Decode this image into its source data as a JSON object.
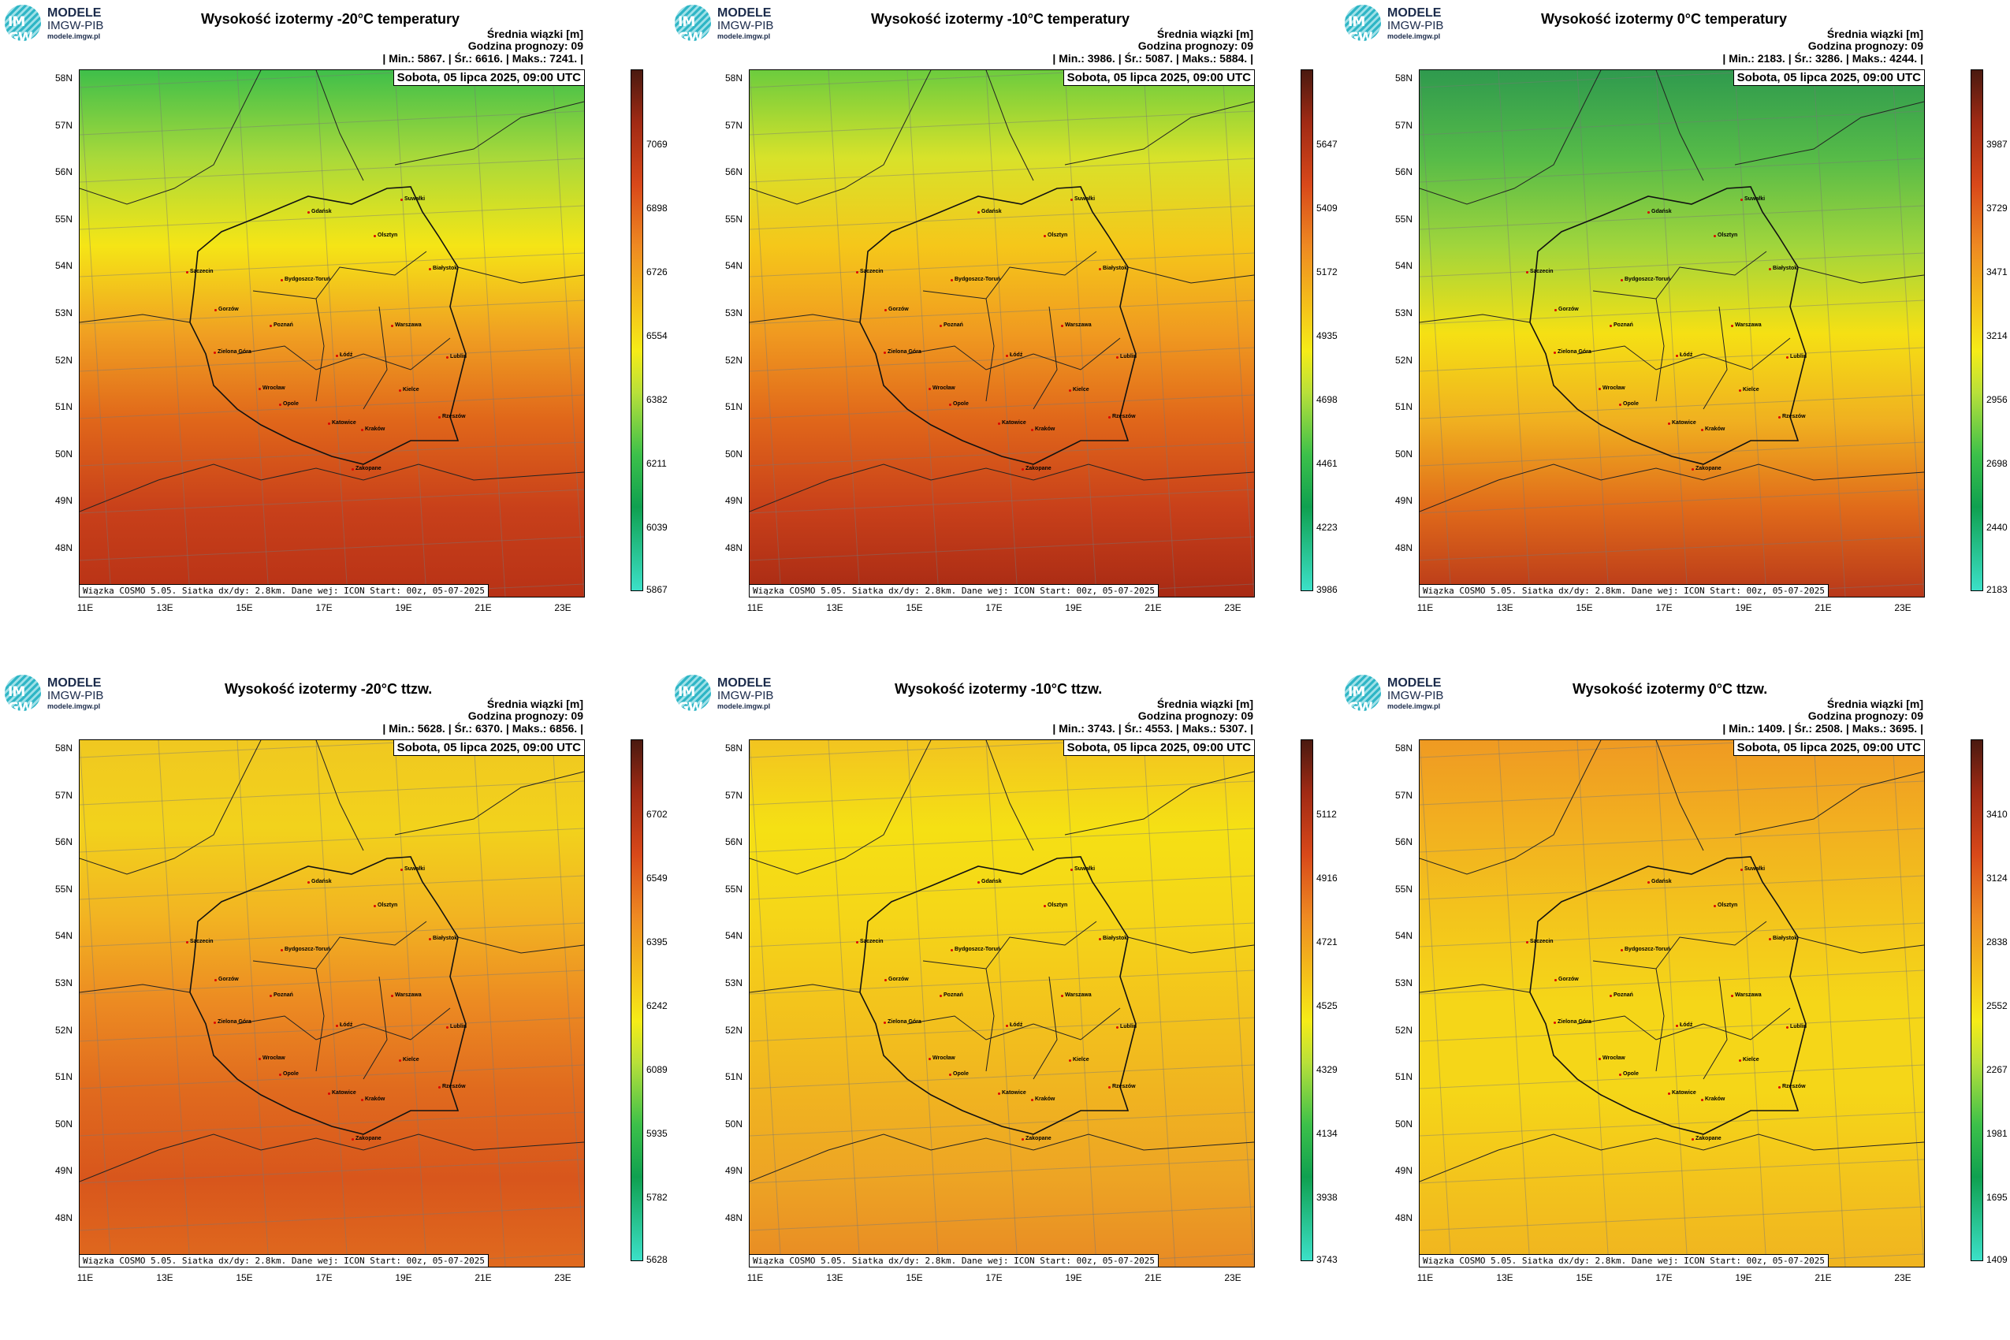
{
  "logo": {
    "line1": "MODELE",
    "line2": "IMGW-PIB",
    "line3": "modele.imgw.pl",
    "mark": "IM GW"
  },
  "common": {
    "info_line1": "Średnia wiązki [m]",
    "info_line2": "Godzina prognozy: 09",
    "date": "Sobota, 05 lipca 2025, 09:00 UTC",
    "footer": "Wiązka COSMO 5.05. Siatka dx/dy: 2.8km. Dane wej: ICON Start: 00z, 05-07-2025",
    "lat_labels": [
      "58N",
      "57N",
      "56N",
      "55N",
      "54N",
      "53N",
      "52N",
      "51N",
      "50N",
      "49N",
      "48N"
    ],
    "lon_labels": [
      "11E",
      "13E",
      "15E",
      "17E",
      "19E",
      "21E",
      "23E"
    ],
    "cities": [
      "Gdańsk",
      "Suwałki",
      "Olsztyn",
      "Białystok",
      "Szczecin",
      "Bydgoszcz-Toruń",
      "Gorzów",
      "Poznań",
      "Warszawa",
      "Zielona Góra",
      "Łódź",
      "Lublin",
      "Wrocław",
      "Kielce",
      "Opole",
      "Rzeszów",
      "Katowice",
      "Kraków",
      "Zakopane"
    ]
  },
  "panels": [
    {
      "title": "Wysokość izotermy -20°C temperatury",
      "stats": "| Min.:   5867. | Śr.:   6616. | Maks.:   7241. |",
      "min": 5867,
      "mean": 6616,
      "max": 7241,
      "ticks": [
        "7069",
        "6898",
        "6726",
        "6554",
        "6382",
        "6211",
        "6039",
        "5867"
      ]
    },
    {
      "title": "Wysokość izotermy -10°C temperatury",
      "stats": "| Min.:   3986. | Śr.:   5087. | Maks.:   5884. |",
      "min": 3986,
      "mean": 5087,
      "max": 5884,
      "ticks": [
        "5647",
        "5409",
        "5172",
        "4935",
        "4698",
        "4461",
        "4223",
        "3986"
      ]
    },
    {
      "title": "Wysokość izotermy 0°C temperatury",
      "stats": "| Min.:   2183. | Śr.:   3286. | Maks.:   4244. |",
      "min": 2183,
      "mean": 3286,
      "max": 4244,
      "ticks": [
        "3987",
        "3729",
        "3471",
        "3214",
        "2956",
        "2698",
        "2440",
        "2183"
      ]
    },
    {
      "title": "Wysokość izotermy -20°C ttzw.",
      "stats": "| Min.:   5628. | Śr.:   6370. | Maks.:   6856. |",
      "min": 5628,
      "mean": 6370,
      "max": 6856,
      "ticks": [
        "6702",
        "6549",
        "6395",
        "6242",
        "6089",
        "5935",
        "5782",
        "5628"
      ]
    },
    {
      "title": "Wysokość izotermy -10°C ttzw.",
      "stats": "| Min.:   3743. | Śr.:   4553. | Maks.:   5307. |",
      "min": 3743,
      "mean": 4553,
      "max": 5307,
      "ticks": [
        "5112",
        "4916",
        "4721",
        "4525",
        "4329",
        "4134",
        "3938",
        "3743"
      ]
    },
    {
      "title": "Wysokość izotermy 0°C ttzw.",
      "stats": "| Min.:   1409. | Śr.:   2508. | Maks.:   3695. |",
      "min": 1409,
      "mean": 2508,
      "max": 3695,
      "ticks": [
        "3410",
        "3124",
        "2838",
        "2552",
        "2267",
        "1981",
        "1695",
        "1409"
      ]
    }
  ]
}
